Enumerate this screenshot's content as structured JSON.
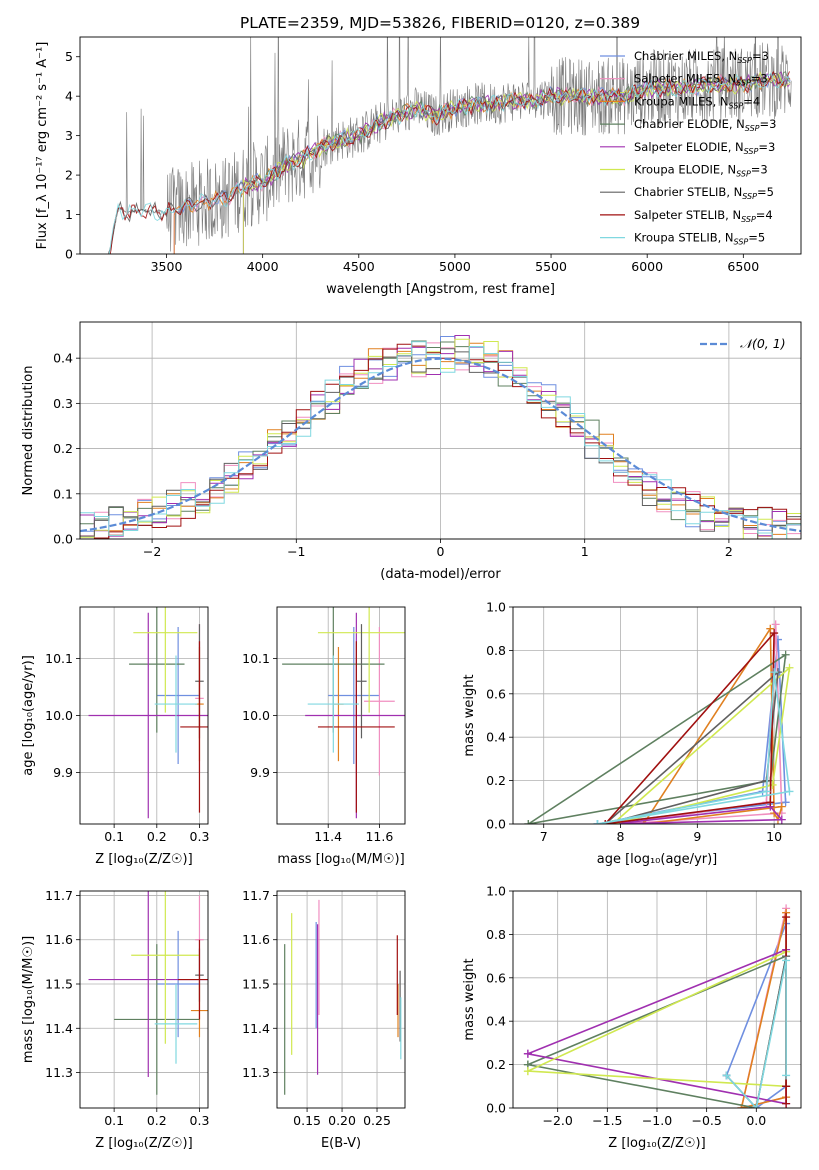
{
  "figure": {
    "title": "PLATE=2359, MJD=53826, FIBERID=0120, z=0.389"
  },
  "colors": {
    "Chabrier MILES": "#6f8fe0",
    "Salpeter MILES": "#f08fc0",
    "Kroupa MILES": "#e08020",
    "Chabrier ELODIE": "#5f8060",
    "Salpeter ELODIE": "#a030b0",
    "Kroupa ELODIE": "#d0e850",
    "Chabrier STELIB": "#606060",
    "Salpeter STELIB": "#a01010",
    "Kroupa STELIB": "#80d8e0",
    "gaussian": "#5b8bd6"
  },
  "chart_data": [
    {
      "id": "spectrum",
      "type": "line",
      "xlabel": "wavelength [Angstrom, rest frame]",
      "ylabel": "Flux [f_λ 10⁻¹⁷ erg cm⁻² s⁻¹ A⁻¹]",
      "xlim": [
        3050,
        6800
      ],
      "ylim": [
        0,
        5.5
      ],
      "xticks": [
        3500,
        4000,
        4500,
        5000,
        5500,
        6000,
        6500
      ],
      "yticks": [
        0,
        1,
        2,
        3,
        4,
        5
      ],
      "grid": false,
      "legend_position": "top-right",
      "data_continuum": {
        "x": [
          3200,
          3250,
          3300,
          3400,
          3500,
          3550,
          3600,
          3700,
          3800,
          3900,
          3960,
          4000,
          4100,
          4200,
          4300,
          4400,
          4500,
          4600,
          4700,
          4800,
          4900,
          5000,
          5100,
          5200,
          5300,
          5400,
          5500,
          5600,
          5700,
          5800,
          5900,
          6000,
          6100,
          6200,
          6300,
          6400,
          6500,
          6600,
          6700
        ],
        "y": [
          0,
          1.15,
          1.05,
          1.1,
          1.05,
          1.15,
          1.2,
          1.35,
          1.4,
          1.7,
          1.8,
          1.8,
          2.2,
          2.4,
          2.7,
          2.9,
          3.0,
          3.3,
          3.5,
          3.7,
          3.5,
          3.7,
          3.8,
          3.8,
          3.9,
          3.9,
          4.0,
          4.0,
          4.0,
          4.0,
          4.0,
          4.2,
          4.2,
          4.2,
          4.3,
          4.3,
          4.3,
          4.4,
          4.4
        ]
      },
      "model_start": {
        "Chabrier MILES": 3540,
        "Salpeter MILES": 3540,
        "Kroupa MILES": 3540,
        "Chabrier ELODIE": 3900,
        "Salpeter ELODIE": 3900,
        "Kroupa ELODIE": 3900,
        "Chabrier STELIB": 3200,
        "Salpeter STELIB": 3200,
        "Kroupa STELIB": 3200
      },
      "series": [
        {
          "name": "Chabrier MILES",
          "label": "Chabrier MILES, N",
          "sub": "SSP",
          "value": "=3"
        },
        {
          "name": "Salpeter MILES",
          "label": "Salpeter MILES, N",
          "sub": "SSP",
          "value": "=3"
        },
        {
          "name": "Kroupa MILES",
          "label": "Kroupa MILES, N",
          "sub": "SSP",
          "value": "=4"
        },
        {
          "name": "Chabrier ELODIE",
          "label": "Chabrier ELODIE, N",
          "sub": "SSP",
          "value": "=3"
        },
        {
          "name": "Salpeter ELODIE",
          "label": "Salpeter ELODIE, N",
          "sub": "SSP",
          "value": "=3"
        },
        {
          "name": "Kroupa ELODIE",
          "label": "Kroupa ELODIE, N",
          "sub": "SSP",
          "value": "=3"
        },
        {
          "name": "Chabrier STELIB",
          "label": "Chabrier STELIB, N",
          "sub": "SSP",
          "value": "=5"
        },
        {
          "name": "Salpeter STELIB",
          "label": "Salpeter STELIB, N",
          "sub": "SSP",
          "value": "=4"
        },
        {
          "name": "Kroupa STELIB",
          "label": "Kroupa STELIB, N",
          "sub": "SSP",
          "value": "=5"
        }
      ]
    },
    {
      "id": "residuals",
      "type": "histogram",
      "xlabel": "(data-model)/error",
      "ylabel": "Normed distribution",
      "xlim": [
        -2.5,
        2.5
      ],
      "ylim": [
        0,
        0.48
      ],
      "xticks": [
        -2,
        -1,
        0,
        1,
        2
      ],
      "yticks": [
        0.0,
        0.1,
        0.2,
        0.3,
        0.4
      ],
      "grid": true,
      "legend_position": "top-right",
      "legend": "𝒩(0, 1)",
      "bin_width": 0.1,
      "bin_centers": [
        -2.45,
        -2.35,
        -2.25,
        -2.15,
        -2.05,
        -1.95,
        -1.85,
        -1.75,
        -1.65,
        -1.55,
        -1.45,
        -1.35,
        -1.25,
        -1.15,
        -1.05,
        -0.95,
        -0.85,
        -0.75,
        -0.65,
        -0.55,
        -0.45,
        -0.35,
        -0.25,
        -0.15,
        -0.05,
        0.05,
        0.15,
        0.25,
        0.35,
        0.45,
        0.55,
        0.65,
        0.75,
        0.85,
        0.95,
        1.05,
        1.15,
        1.25,
        1.35,
        1.45,
        1.55,
        1.65,
        1.75,
        1.85,
        1.95,
        2.05,
        2.15,
        2.25,
        2.35,
        2.45
      ],
      "base_density": [
        0.02,
        0.025,
        0.03,
        0.04,
        0.045,
        0.055,
        0.07,
        0.085,
        0.1,
        0.115,
        0.135,
        0.15,
        0.175,
        0.2,
        0.23,
        0.26,
        0.29,
        0.31,
        0.34,
        0.36,
        0.38,
        0.39,
        0.395,
        0.4,
        0.405,
        0.41,
        0.41,
        0.405,
        0.395,
        0.38,
        0.36,
        0.34,
        0.31,
        0.28,
        0.25,
        0.22,
        0.19,
        0.16,
        0.14,
        0.115,
        0.1,
        0.085,
        0.07,
        0.055,
        0.045,
        0.04,
        0.035,
        0.03,
        0.03,
        0.025
      ],
      "gaussian": {
        "mean": 0,
        "sigma": 1
      }
    },
    {
      "id": "age-vs-Z",
      "type": "errorbar",
      "xlabel": "Z [log₁₀(Z/Z☉)]",
      "ylabel": "age  [log₁₀(age/yr)]",
      "xlim": [
        0.02,
        0.32
      ],
      "ylim": [
        9.81,
        10.19
      ],
      "xticks": [
        0.1,
        0.2,
        0.3
      ],
      "yticks": [
        9.9,
        10.0,
        10.1
      ],
      "grid": true,
      "points": [
        {
          "series": "Chabrier MILES",
          "x": 0.25,
          "xerr": 0.05,
          "y": 10.035,
          "yerr": 0.12
        },
        {
          "series": "Salpeter MILES",
          "x": 0.3,
          "xerr": 0.01,
          "y": 10.03,
          "yerr": 0.13
        },
        {
          "series": "Kroupa MILES",
          "x": 0.3,
          "xerr": 0.01,
          "y": 10.02,
          "yerr": 0.1
        },
        {
          "series": "Chabrier ELODIE",
          "x": 0.2,
          "xerr": 0.065,
          "y": 10.09,
          "yerr": 0.12
        },
        {
          "series": "Salpeter ELODIE",
          "x": 0.18,
          "xerr": 0.14,
          "y": 10.0,
          "yerr": 0.18
        },
        {
          "series": "Kroupa ELODIE",
          "x": 0.22,
          "xerr": 0.075,
          "y": 10.145,
          "yerr": 0.14
        },
        {
          "series": "Chabrier STELIB",
          "x": 0.3,
          "xerr": 0.01,
          "y": 10.06,
          "yerr": 0.1
        },
        {
          "series": "Salpeter STELIB",
          "x": 0.3,
          "xerr": 0.045,
          "y": 9.98,
          "yerr": 0.15
        },
        {
          "series": "Kroupa STELIB",
          "x": 0.245,
          "xerr": 0.05,
          "y": 10.02,
          "yerr": 0.085
        }
      ]
    },
    {
      "id": "age-vs-mass",
      "type": "errorbar",
      "xlabel": "mass [log₁₀(M/M☉)]",
      "ylabel": "",
      "xlim": [
        11.2,
        11.7
      ],
      "ylim": [
        9.81,
        10.19
      ],
      "xticks": [
        11.4,
        11.6
      ],
      "yticks": [
        9.9,
        10.0,
        10.1
      ],
      "grid": true,
      "points": [
        {
          "series": "Chabrier MILES",
          "x": 11.5,
          "xerr": 0.1,
          "y": 10.035,
          "yerr": 0.12
        },
        {
          "series": "Salpeter MILES",
          "x": 11.6,
          "xerr": 0.06,
          "y": 10.025,
          "yerr": 0.13
        },
        {
          "series": "Kroupa MILES",
          "x": 11.44,
          "xerr": 0.02,
          "y": 10.02,
          "yerr": 0.1
        },
        {
          "series": "Chabrier ELODIE",
          "x": 11.42,
          "xerr": 0.2,
          "y": 10.09,
          "yerr": 0.12
        },
        {
          "series": "Salpeter ELODIE",
          "x": 11.51,
          "xerr": 0.2,
          "y": 10.0,
          "yerr": 0.18
        },
        {
          "series": "Kroupa ELODIE",
          "x": 11.56,
          "xerr": 0.2,
          "y": 10.145,
          "yerr": 0.14
        },
        {
          "series": "Chabrier STELIB",
          "x": 11.53,
          "xerr": 0.02,
          "y": 10.06,
          "yerr": 0.1
        },
        {
          "series": "Salpeter STELIB",
          "x": 11.51,
          "xerr": 0.15,
          "y": 9.98,
          "yerr": 0.15
        },
        {
          "series": "Kroupa STELIB",
          "x": 11.42,
          "xerr": 0.1,
          "y": 10.02,
          "yerr": 0.085
        }
      ]
    },
    {
      "id": "weight-vs-age",
      "type": "line",
      "xlabel": "age  [log₁₀(age/yr)]",
      "ylabel": "mass weight",
      "xlim": [
        6.6,
        10.35
      ],
      "ylim": [
        0.0,
        1.0
      ],
      "xticks": [
        7,
        8,
        9,
        10
      ],
      "yticks": [
        0.0,
        0.2,
        0.4,
        0.6,
        0.8,
        1.0
      ],
      "grid": true,
      "series": [
        {
          "name": "Chabrier MILES",
          "x": [
            7.7,
            9.85,
            10.05,
            10.15,
            7.7
          ],
          "y": [
            0.0,
            0.15,
            0.85,
            0.1,
            0.0
          ]
        },
        {
          "name": "Salpeter MILES",
          "x": [
            8.0,
            9.9,
            10.02,
            10.1,
            8.0
          ],
          "y": [
            0.0,
            0.1,
            0.92,
            0.05,
            0.0
          ]
        },
        {
          "name": "Kroupa MILES",
          "x": [
            8.3,
            9.95,
            10.0,
            10.05,
            10.1,
            8.3
          ],
          "y": [
            0.0,
            0.9,
            0.05,
            0.02,
            0.08,
            0.0
          ]
        },
        {
          "name": "Chabrier ELODIE",
          "x": [
            6.8,
            9.95,
            10.15,
            6.8
          ],
          "y": [
            0.0,
            0.2,
            0.78,
            0.0
          ]
        },
        {
          "name": "Salpeter ELODIE",
          "x": [
            7.9,
            9.95,
            10.1,
            7.9
          ],
          "y": [
            0.0,
            0.08,
            0.02,
            0.0
          ]
        },
        {
          "name": "Kroupa ELODIE",
          "x": [
            7.9,
            9.98,
            10.2,
            7.9
          ],
          "y": [
            0.0,
            0.18,
            0.72,
            0.0
          ]
        },
        {
          "name": "Chabrier STELIB",
          "x": [
            7.8,
            9.9,
            10.05,
            7.8
          ],
          "y": [
            0.0,
            0.2,
            0.7,
            0.0
          ]
        },
        {
          "name": "Salpeter STELIB",
          "x": [
            7.8,
            9.95,
            10.0,
            7.8
          ],
          "y": [
            0.0,
            0.1,
            0.88,
            0.0
          ]
        },
        {
          "name": "Kroupa STELIB",
          "x": [
            7.7,
            9.9,
            10.0,
            10.2,
            7.7
          ],
          "y": [
            0.0,
            0.15,
            0.7,
            0.15,
            0.0
          ]
        }
      ]
    },
    {
      "id": "mass-vs-Z",
      "type": "errorbar",
      "xlabel": "Z [log₁₀(Z/Z☉)]",
      "ylabel": "mass [log₁₀(M/M☉)]",
      "xlim": [
        0.02,
        0.32
      ],
      "ylim": [
        11.22,
        11.71
      ],
      "xticks": [
        0.1,
        0.2,
        0.3
      ],
      "yticks": [
        11.3,
        11.4,
        11.5,
        11.6,
        11.7
      ],
      "grid": true,
      "points": [
        {
          "series": "Chabrier MILES",
          "x": 0.25,
          "xerr": 0.05,
          "y": 11.5,
          "yerr": 0.12
        },
        {
          "series": "Salpeter MILES",
          "x": 0.3,
          "xerr": 0.01,
          "y": 11.6,
          "yerr": 0.1
        },
        {
          "series": "Kroupa MILES",
          "x": 0.3,
          "xerr": 0.02,
          "y": 11.44,
          "yerr": 0.06
        },
        {
          "series": "Chabrier ELODIE",
          "x": 0.2,
          "xerr": 0.1,
          "y": 11.42,
          "yerr": 0.17
        },
        {
          "series": "Salpeter ELODIE",
          "x": 0.18,
          "xerr": 0.14,
          "y": 11.51,
          "yerr": 0.22
        },
        {
          "series": "Kroupa ELODIE",
          "x": 0.22,
          "xerr": 0.08,
          "y": 11.565,
          "yerr": 0.2
        },
        {
          "series": "Chabrier STELIB",
          "x": 0.3,
          "xerr": 0.01,
          "y": 11.52,
          "yerr": 0.06
        },
        {
          "series": "Salpeter STELIB",
          "x": 0.3,
          "xerr": 0.05,
          "y": 11.51,
          "yerr": 0.09
        },
        {
          "series": "Kroupa STELIB",
          "x": 0.245,
          "xerr": 0.05,
          "y": 11.41,
          "yerr": 0.09
        }
      ]
    },
    {
      "id": "mass-vs-ebv",
      "type": "errorbar",
      "xlabel": "E(B-V)",
      "ylabel": "",
      "xlim": [
        0.107,
        0.29
      ],
      "ylim": [
        11.22,
        11.71
      ],
      "xticks": [
        0.15,
        0.2,
        0.25
      ],
      "yticks": [
        11.3,
        11.4,
        11.5,
        11.6,
        11.7
      ],
      "grid": true,
      "points": [
        {
          "series": "Chabrier MILES",
          "x": 0.163,
          "xerr": 0,
          "y": 11.52,
          "yerr": 0.12
        },
        {
          "series": "Salpeter MILES",
          "x": 0.167,
          "xerr": 0,
          "y": 11.56,
          "yerr": 0.13
        },
        {
          "series": "Kroupa MILES",
          "x": 0.28,
          "xerr": 0,
          "y": 11.44,
          "yerr": 0.06
        },
        {
          "series": "Chabrier ELODIE",
          "x": 0.118,
          "xerr": 0,
          "y": 11.42,
          "yerr": 0.17
        },
        {
          "series": "Salpeter ELODIE",
          "x": 0.165,
          "xerr": 0,
          "y": 11.465,
          "yerr": 0.17
        },
        {
          "series": "Kroupa ELODIE",
          "x": 0.128,
          "xerr": 0,
          "y": 11.5,
          "yerr": 0.16
        },
        {
          "series": "Chabrier STELIB",
          "x": 0.283,
          "xerr": 0,
          "y": 11.45,
          "yerr": 0.08
        },
        {
          "series": "Salpeter STELIB",
          "x": 0.279,
          "xerr": 0,
          "y": 11.52,
          "yerr": 0.09
        },
        {
          "series": "Kroupa STELIB",
          "x": 0.284,
          "xerr": 0,
          "y": 11.4,
          "yerr": 0.07
        }
      ]
    },
    {
      "id": "weight-vs-Z",
      "type": "line",
      "xlabel": "Z [log₁₀(Z/Z☉)]",
      "ylabel": "mass weight",
      "xlim": [
        -2.45,
        0.45
      ],
      "ylim": [
        0.0,
        1.0
      ],
      "xticks": [
        -2.0,
        -1.5,
        -1.0,
        -0.5,
        0.0
      ],
      "yticks": [
        0.0,
        0.2,
        0.4,
        0.6,
        0.8,
        1.0
      ],
      "grid": true,
      "series": [
        {
          "name": "Chabrier MILES",
          "x": [
            -0.3,
            0.3,
            0.3,
            0.0,
            -0.3
          ],
          "y": [
            0.15,
            0.85,
            0.1,
            0.0,
            0.15
          ]
        },
        {
          "name": "Salpeter MILES",
          "x": [
            -0.15,
            0.3,
            0.3,
            -0.15
          ],
          "y": [
            0.0,
            0.92,
            0.05,
            0.0
          ]
        },
        {
          "name": "Kroupa MILES",
          "x": [
            -0.15,
            0.3,
            0.3,
            0.3,
            -0.15
          ],
          "y": [
            0.0,
            0.9,
            0.1,
            0.05,
            0.0
          ]
        },
        {
          "name": "Chabrier ELODIE",
          "x": [
            -2.3,
            0.0,
            0.3,
            -2.3
          ],
          "y": [
            0.2,
            0.0,
            0.7,
            0.2
          ]
        },
        {
          "name": "Salpeter ELODIE",
          "x": [
            -2.3,
            0.3,
            0.3,
            -2.3
          ],
          "y": [
            0.25,
            0.73,
            0.02,
            0.25
          ]
        },
        {
          "name": "Kroupa ELODIE",
          "x": [
            -2.3,
            0.3,
            0.3,
            -2.3
          ],
          "y": [
            0.17,
            0.72,
            0.1,
            0.17
          ]
        },
        {
          "name": "Chabrier STELIB",
          "x": [
            -0.3,
            0.0,
            0.3,
            0.3
          ],
          "y": [
            0.15,
            0.0,
            0.7,
            0.1
          ]
        },
        {
          "name": "Salpeter STELIB",
          "x": [
            0.3,
            0.3,
            0.3
          ],
          "y": [
            0.88,
            0.1,
            0.02
          ]
        },
        {
          "name": "Kroupa STELIB",
          "x": [
            -0.3,
            0.0,
            0.3,
            0.3
          ],
          "y": [
            0.15,
            0.0,
            0.68,
            0.15
          ]
        }
      ]
    }
  ]
}
